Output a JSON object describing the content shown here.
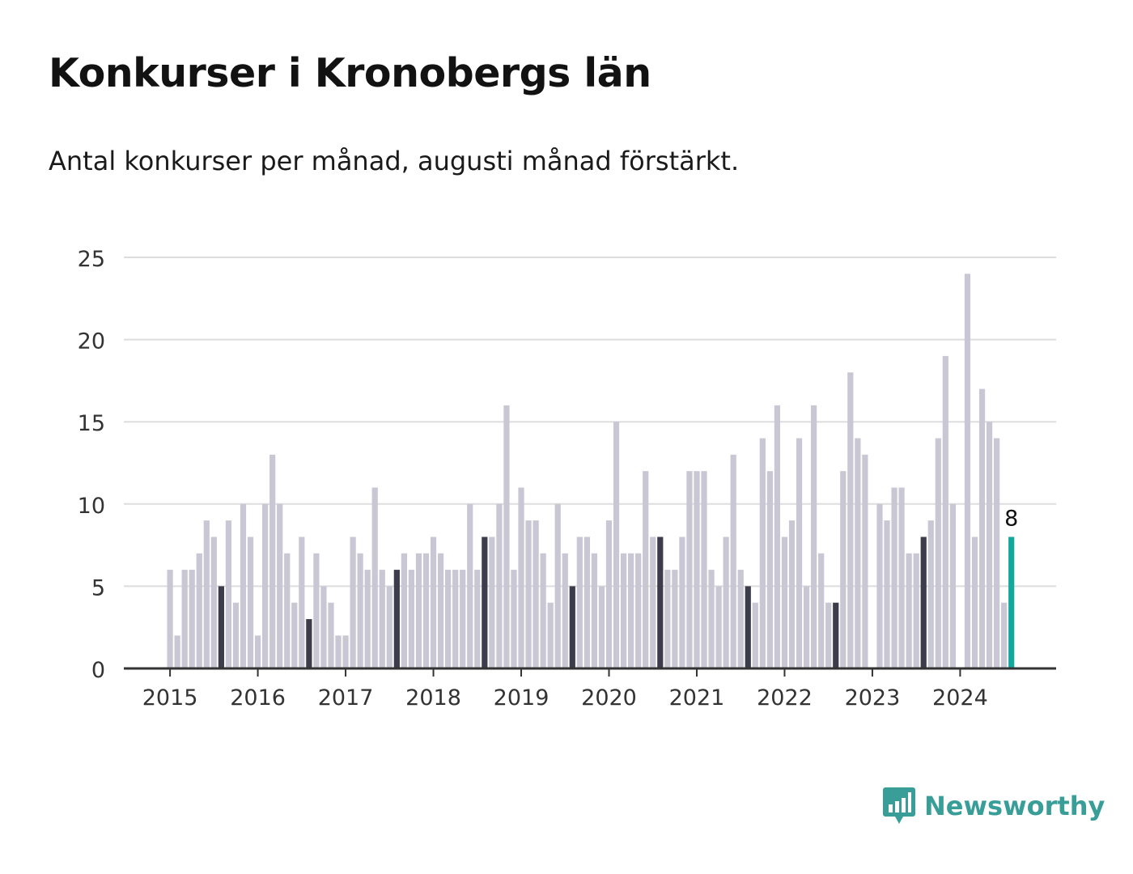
{
  "header": {
    "title": "Konkurser i Kronobergs län",
    "subtitle": "Antal konkurser per månad, augusti månad förstärkt."
  },
  "brand": {
    "name": "Newsworthy",
    "icon": "newsworthy-logo-icon",
    "color": "#3a9e98"
  },
  "colors": {
    "bar": "#c8c7d3",
    "highlight": "#3d3c4b",
    "latest": "#13a89e",
    "grid": "#dddddd",
    "axis": "#333333"
  },
  "chart_data": {
    "type": "bar",
    "title": "Konkurser i Kronobergs län",
    "subtitle": "Antal konkurser per månad, augusti månad förstärkt.",
    "xlabel": "",
    "ylabel": "",
    "ylim": [
      0,
      25
    ],
    "yticks": [
      0,
      5,
      10,
      15,
      20,
      25
    ],
    "xticks": [
      "2015",
      "2016",
      "2017",
      "2018",
      "2019",
      "2020",
      "2021",
      "2022",
      "2023",
      "2024"
    ],
    "grid": true,
    "start": "2015-01",
    "highlight_month": "augusti",
    "values": [
      6,
      2,
      6,
      6,
      7,
      9,
      8,
      5,
      9,
      4,
      10,
      8,
      2,
      10,
      13,
      10,
      7,
      4,
      8,
      3,
      7,
      5,
      4,
      2,
      2,
      8,
      7,
      6,
      11,
      6,
      5,
      6,
      7,
      6,
      7,
      7,
      8,
      7,
      6,
      6,
      6,
      10,
      6,
      8,
      8,
      10,
      16,
      6,
      11,
      9,
      9,
      7,
      4,
      10,
      7,
      5,
      8,
      8,
      7,
      5,
      9,
      15,
      7,
      7,
      7,
      12,
      8,
      8,
      6,
      6,
      8,
      12,
      12,
      12,
      6,
      5,
      8,
      13,
      6,
      5,
      4,
      14,
      12,
      16,
      8,
      9,
      14,
      5,
      16,
      7,
      4,
      4,
      12,
      18,
      14,
      13,
      0,
      10,
      9,
      11,
      11,
      7,
      7,
      8,
      9,
      14,
      19,
      10,
      0,
      24,
      8,
      17,
      15,
      14,
      4,
      8
    ],
    "latest_label": "8"
  }
}
